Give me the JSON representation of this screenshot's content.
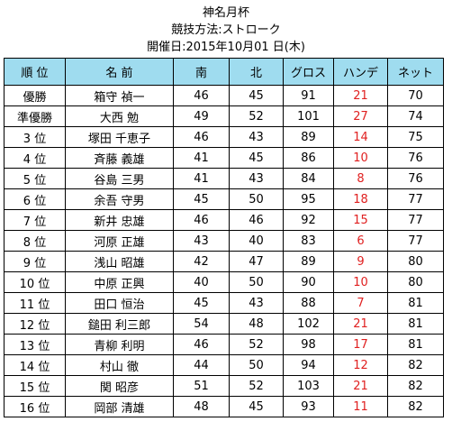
{
  "header": {
    "title": "神名月杯",
    "method": "競技方法:ストローク",
    "date": "開催日:2015年10月01 日(木)"
  },
  "table": {
    "columns": [
      "順 位",
      "名 前",
      "南",
      "北",
      "グロス",
      "ハンデ",
      "ネット"
    ],
    "rows": [
      [
        "優勝",
        "箱守 禎一",
        46,
        45,
        91,
        21,
        70
      ],
      [
        "準優勝",
        "大西 勉",
        49,
        52,
        101,
        27,
        74
      ],
      [
        "3 位",
        "塚田 千恵子",
        46,
        43,
        89,
        14,
        75
      ],
      [
        "4 位",
        "斉藤 義雄",
        41,
        45,
        86,
        10,
        76
      ],
      [
        "5 位",
        "谷島 三男",
        41,
        43,
        84,
        8,
        76
      ],
      [
        "6 位",
        "余吾 守男",
        45,
        50,
        95,
        18,
        77
      ],
      [
        "7 位",
        "新井 忠雄",
        46,
        46,
        92,
        15,
        77
      ],
      [
        "8 位",
        "河原 正雄",
        43,
        40,
        83,
        6,
        77
      ],
      [
        "9 位",
        "浅山 昭雄",
        42,
        47,
        89,
        9,
        80
      ],
      [
        "10 位",
        "中原 正興",
        40,
        50,
        90,
        10,
        80
      ],
      [
        "11 位",
        "田口 恒治",
        45,
        43,
        88,
        7,
        81
      ],
      [
        "12 位",
        "鎚田 利三郎",
        54,
        48,
        102,
        21,
        81
      ],
      [
        "13 位",
        "青柳 利明",
        46,
        52,
        98,
        17,
        81
      ],
      [
        "14 位",
        "村山 徹",
        44,
        50,
        94,
        12,
        82
      ],
      [
        "15 位",
        "関 昭彦",
        51,
        52,
        103,
        21,
        82
      ],
      [
        "16 位",
        "岡部 清雄",
        48,
        45,
        93,
        11,
        82
      ]
    ]
  }
}
